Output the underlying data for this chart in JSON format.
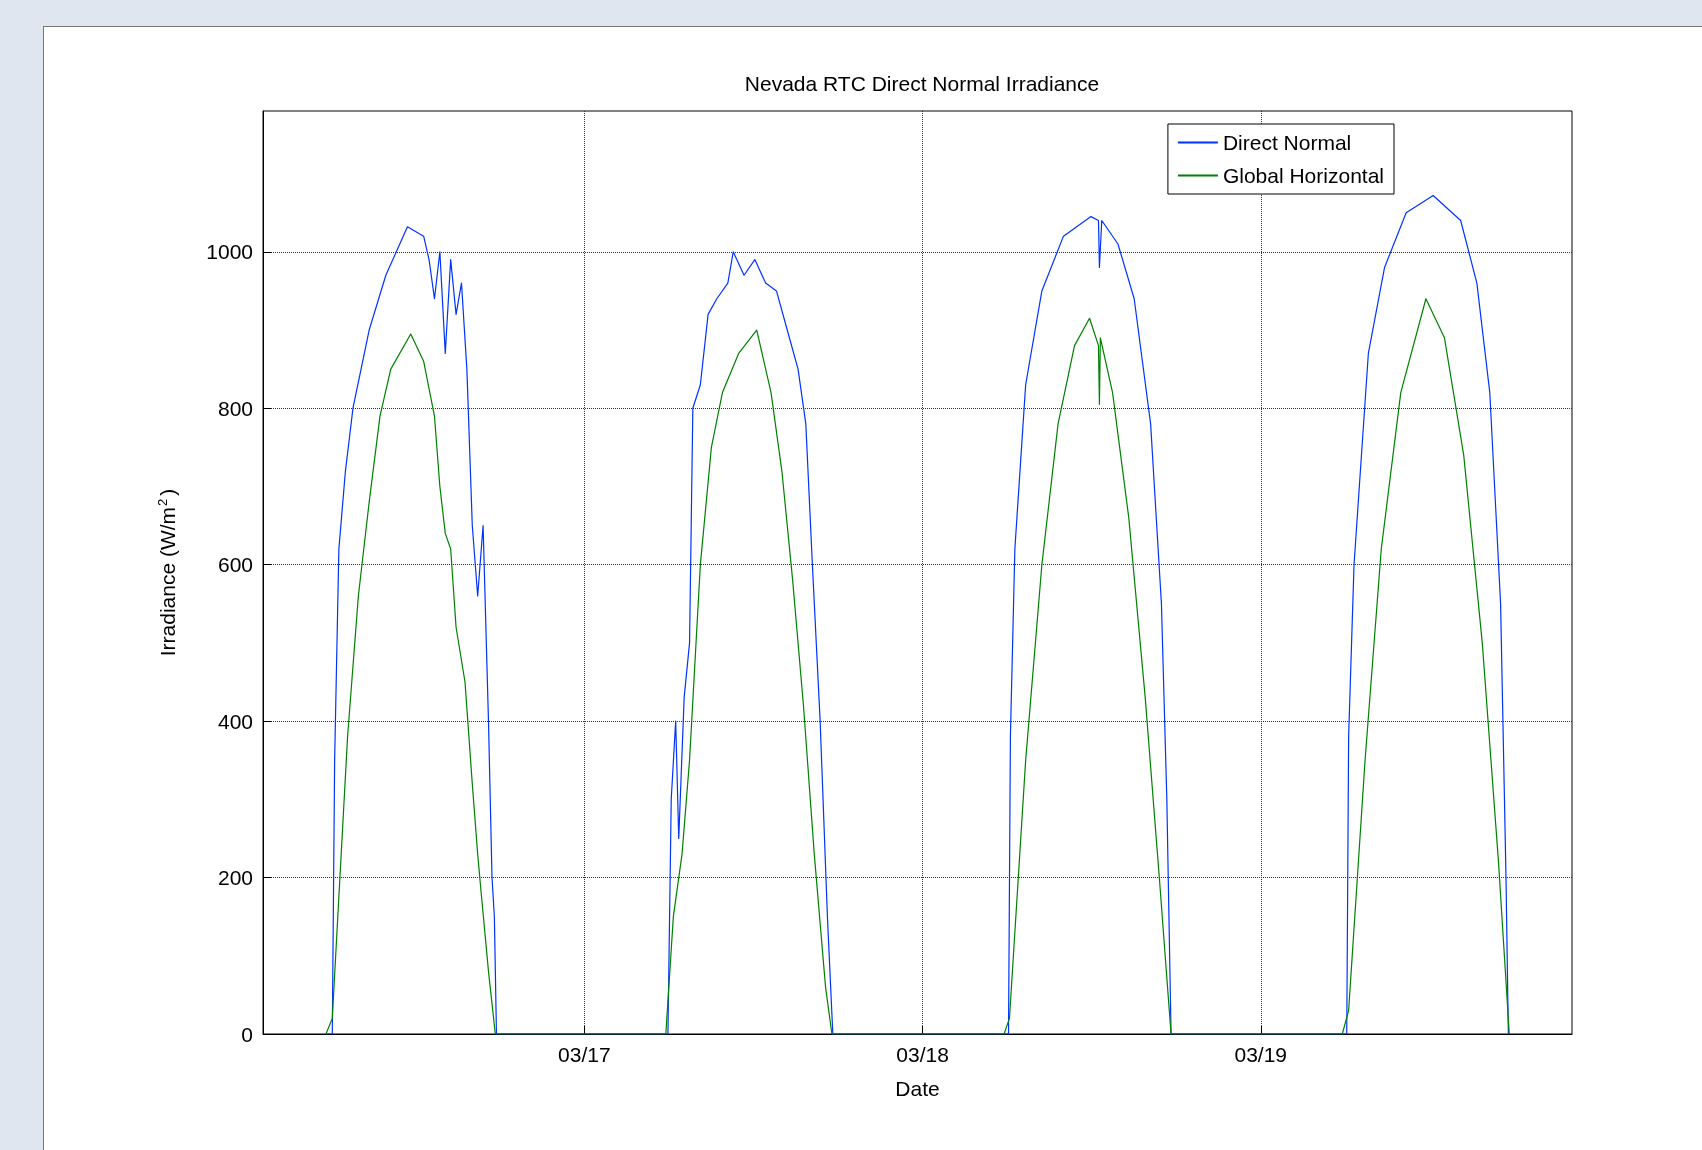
{
  "chart_data": {
    "type": "line",
    "title": "Nevada RTC Direct Normal Irradiance",
    "xlabel": "Date",
    "ylabel": "Irradiance (W/m$^{2}$)",
    "xlim": [
      "--03-16T01:12",
      "--03-19T22:05"
    ],
    "xticks": [
      {
        "value": "--03-17",
        "label": "03/17"
      },
      {
        "value": "--03-18",
        "label": "03/18"
      },
      {
        "value": "--03-19",
        "label": "03/19"
      }
    ],
    "ylim": [
      0,
      1180
    ],
    "yticks": [
      0,
      200,
      400,
      600,
      800,
      1000
    ],
    "grid": true,
    "legend": "top right",
    "series": [
      {
        "name": "Direct Normal",
        "color": "#0033ff",
        "x": [
          "--03-16T05:40",
          "--03-16T06:07",
          "--03-16T06:17",
          "--03-16T06:35",
          "--03-16T07:03",
          "--03-16T07:35",
          "--03-16T08:44",
          "--03-16T09:55",
          "--03-16T11:27",
          "--03-16T12:36",
          "--03-16T12:59",
          "--03-16T13:22",
          "--03-16T13:45",
          "--03-16T14:08",
          "--03-16T14:31",
          "--03-16T14:54",
          "--03-16T15:17",
          "--03-16T15:40",
          "--03-16T16:03",
          "--03-16T16:26",
          "--03-16T16:49",
          "--03-16T17:12",
          "--03-16T17:27",
          "--03-16T17:37",
          "--03-16T17:46",
          "--03-17T04:48",
          "--03-17T05:56",
          "--03-17T06:10",
          "--03-17T06:29",
          "--03-17T06:42",
          "--03-17T07:05",
          "--03-17T07:28",
          "--03-17T07:42",
          "--03-17T08:14",
          "--03-17T08:47",
          "--03-17T09:24",
          "--03-17T10:11",
          "--03-17T10:34",
          "--03-17T11:20",
          "--03-17T12:06",
          "--03-17T12:52",
          "--03-17T13:38",
          "--03-17T14:24",
          "--03-17T15:10",
          "--03-17T15:43",
          "--03-17T16:11",
          "--03-17T16:44",
          "--03-17T17:15",
          "--03-17T17:38",
          "--03-18T04:48",
          "--03-18T06:06",
          "--03-18T06:14",
          "--03-18T06:33",
          "--03-18T07:19",
          "--03-18T08:28",
          "--03-18T10:00",
          "--03-18T11:57",
          "--03-18T12:29",
          "--03-18T12:33",
          "--03-18T12:43",
          "--03-18T13:52",
          "--03-18T15:01",
          "--03-18T16:11",
          "--03-18T16:57",
          "--03-18T17:20",
          "--03-18T17:38",
          "--03-19T04:48",
          "--03-19T06:06",
          "--03-19T06:14",
          "--03-19T06:37",
          "--03-19T07:38",
          "--03-19T08:47",
          "--03-19T10:19",
          "--03-19T12:14",
          "--03-19T14:11",
          "--03-19T15:20",
          "--03-19T16:15",
          "--03-19T17:01",
          "--03-19T17:24",
          "--03-19T17:34"
        ],
        "values": [
          0,
          0,
          350,
          620,
          720,
          800,
          900,
          970,
          1032,
          1020,
          990,
          940,
          1000,
          870,
          990,
          920,
          960,
          850,
          650,
          560,
          650,
          400,
          200,
          150,
          0,
          0,
          0,
          300,
          400,
          250,
          430,
          500,
          800,
          830,
          920,
          940,
          960,
          1000,
          970,
          990,
          960,
          950,
          900,
          850,
          780,
          600,
          400,
          150,
          0,
          0,
          0,
          380,
          620,
          830,
          950,
          1020,
          1045,
          1040,
          980,
          1040,
          1010,
          940,
          780,
          550,
          300,
          0,
          0,
          0,
          380,
          600,
          870,
          980,
          1050,
          1072,
          1040,
          960,
          820,
          550,
          200,
          0
        ]
      },
      {
        "name": "Global Horizontal",
        "color": "#008000",
        "x": [
          "--03-16T05:40",
          "--03-16T06:07",
          "--03-16T07:12",
          "--03-16T07:58",
          "--03-16T08:44",
          "--03-16T09:30",
          "--03-16T10:16",
          "--03-16T11:41",
          "--03-16T12:36",
          "--03-16T13:22",
          "--03-16T13:45",
          "--03-16T14:08",
          "--03-16T14:31",
          "--03-16T14:54",
          "--03-16T15:32",
          "--03-16T16:03",
          "--03-16T16:26",
          "--03-16T16:41",
          "--03-16T17:12",
          "--03-16T17:41",
          "--03-17T05:47",
          "--03-17T06:19",
          "--03-17T06:56",
          "--03-17T07:28",
          "--03-17T08:14",
          "--03-17T09:01",
          "--03-17T09:48",
          "--03-17T10:57",
          "--03-17T12:14",
          "--03-17T13:15",
          "--03-17T14:01",
          "--03-17T14:47",
          "--03-17T15:33",
          "--03-17T16:19",
          "--03-17T17:07",
          "--03-17T17:34",
          "--03-18T05:47",
          "--03-18T06:10",
          "--03-18T07:19",
          "--03-18T08:28",
          "--03-18T09:37",
          "--03-18T10:47",
          "--03-18T11:51",
          "--03-18T12:29",
          "--03-18T12:33",
          "--03-18T12:37",
          "--03-18T13:29",
          "--03-18T14:38",
          "--03-18T15:48",
          "--03-18T16:48",
          "--03-18T17:38",
          "--03-19T05:47",
          "--03-19T06:14",
          "--03-19T07:24",
          "--03-19T08:33",
          "--03-19T09:56",
          "--03-19T11:43",
          "--03-19T13:02",
          "--03-19T14:24",
          "--03-19T15:43",
          "--03-19T16:52",
          "--03-19T17:38"
        ],
        "values": [
          0,
          20,
          380,
          560,
          680,
          790,
          850,
          895,
          860,
          790,
          700,
          640,
          620,
          520,
          450,
          320,
          230,
          180,
          80,
          0,
          0,
          150,
          230,
          350,
          600,
          750,
          820,
          870,
          900,
          820,
          720,
          580,
          420,
          230,
          60,
          0,
          0,
          20,
          350,
          600,
          780,
          880,
          915,
          880,
          805,
          890,
          820,
          660,
          430,
          200,
          0,
          0,
          30,
          350,
          620,
          820,
          940,
          890,
          740,
          500,
          220,
          0
        ]
      }
    ]
  }
}
